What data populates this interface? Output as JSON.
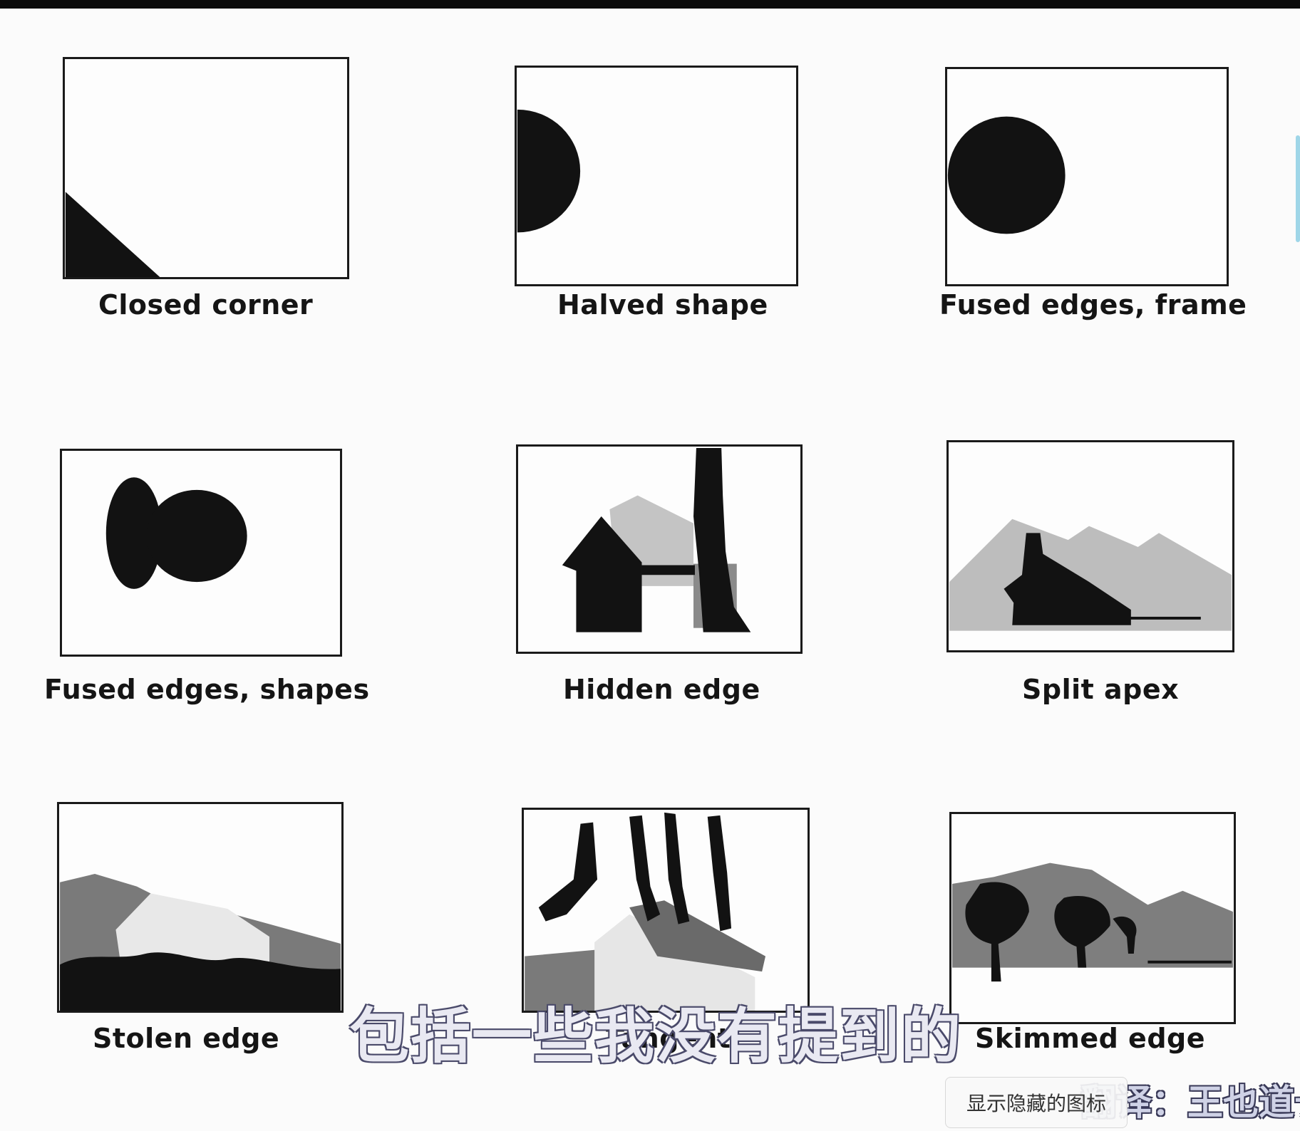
{
  "panels": [
    {
      "id": "closed-corner",
      "caption": "Closed corner"
    },
    {
      "id": "halved-shape",
      "caption": "Halved shape"
    },
    {
      "id": "fused-edges-frame",
      "caption": "Fused edges, frame"
    },
    {
      "id": "fused-edges-shapes",
      "caption": "Fused edges, shapes"
    },
    {
      "id": "hidden-edge",
      "caption": "Hidden edge"
    },
    {
      "id": "split-apex",
      "caption": "Split apex"
    },
    {
      "id": "stolen-edge",
      "caption": "Stolen edge"
    },
    {
      "id": "tangent",
      "caption": "Tangent"
    },
    {
      "id": "skimmed-edge",
      "caption": "Skimmed edge"
    }
  ],
  "overlay": {
    "subtitle": "包括一些我没有提到的",
    "credit": "翻译：王也道长",
    "tooltip": "显示隐藏的图标"
  },
  "colors": {
    "ink": "#121212",
    "gray_wash": "#b8b8b8",
    "paper": "#fdfdfd"
  }
}
